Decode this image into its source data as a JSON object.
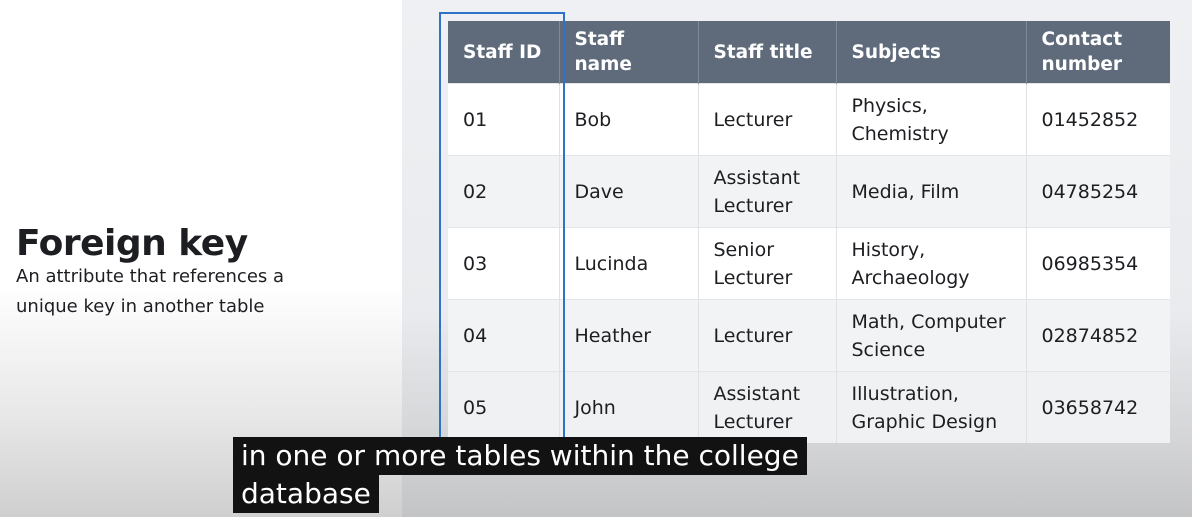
{
  "slide": {
    "heading": "Foreign key",
    "description_line1": "An attribute that references a",
    "description_line2": "unique key in another table"
  },
  "table": {
    "headers": [
      "Staff ID",
      "Staff name",
      "Staff title",
      "Subjects",
      "Contact number"
    ],
    "rows": [
      {
        "id": "01",
        "name": "Bob",
        "title": "Lecturer",
        "subjects": "Physics, Chemistry",
        "contact": "01452852"
      },
      {
        "id": "02",
        "name": "Dave",
        "title": "Assistant Lecturer",
        "subjects": "Media, Film",
        "contact": "04785254"
      },
      {
        "id": "03",
        "name": "Lucinda",
        "title": "Senior Lecturer",
        "subjects": "History, Archaeology",
        "contact": "06985354"
      },
      {
        "id": "04",
        "name": "Heather",
        "title": "Lecturer",
        "subjects": "Math, Computer Science",
        "contact": "02874852"
      },
      {
        "id": "05",
        "name": "John",
        "title": "Assistant Lecturer",
        "subjects": "Illustration, Graphic Design",
        "contact": "03658742"
      }
    ]
  },
  "caption": {
    "line1": "in one or more tables within the college",
    "line2": "database"
  },
  "colors": {
    "header_bg": "#5f6b7b",
    "highlight_border": "#2e73c9",
    "caption_bg": "#121212"
  }
}
